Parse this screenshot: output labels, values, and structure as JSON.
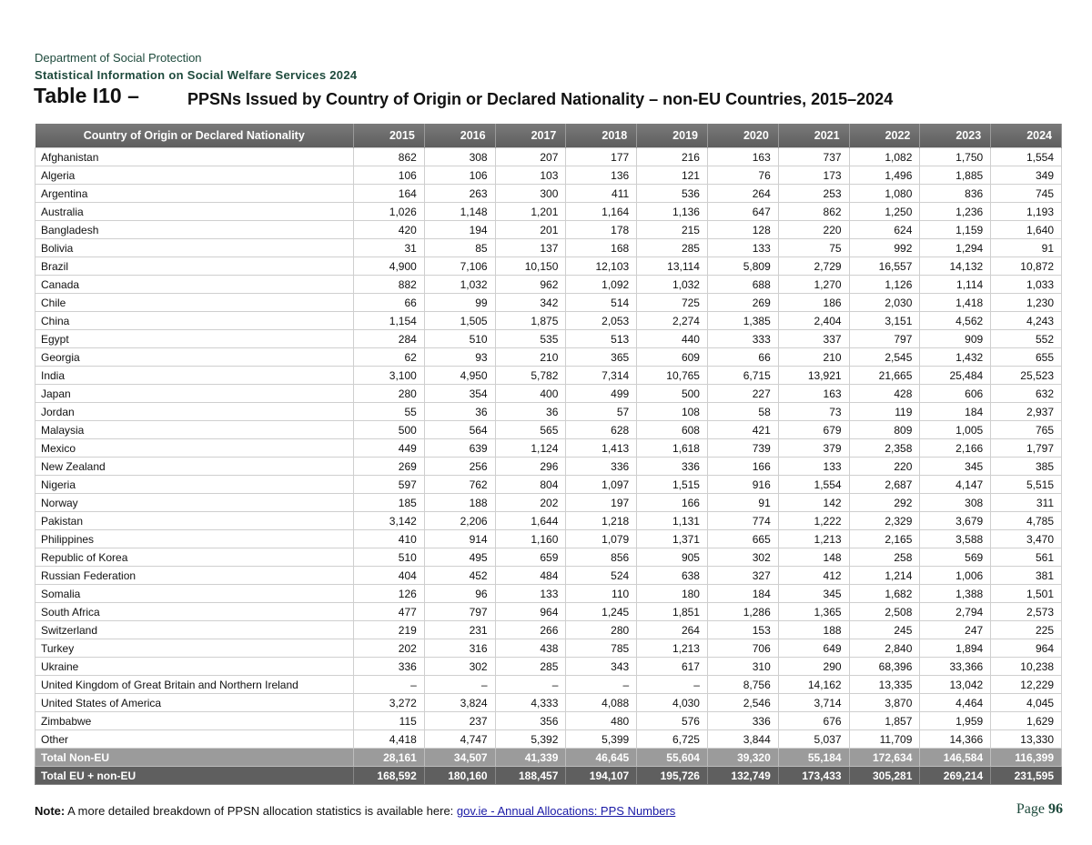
{
  "header": {
    "department": "Department of Social Protection",
    "publication": "Statistical Information on Social Welfare Services 2024",
    "table_number": "Table I10 –",
    "table_title": "PPSNs Issued by Country of Origin or Declared Nationality – non-EU Countries, 2015–2024"
  },
  "table": {
    "columns": [
      "Country of Origin or Declared Nationality",
      "2015",
      "2016",
      "2017",
      "2018",
      "2019",
      "2020",
      "2021",
      "2022",
      "2023",
      "2024"
    ],
    "rows": [
      [
        "Afghanistan",
        "862",
        "308",
        "207",
        "177",
        "216",
        "163",
        "737",
        "1,082",
        "1,750",
        "1,554"
      ],
      [
        "Algeria",
        "106",
        "106",
        "103",
        "136",
        "121",
        "76",
        "173",
        "1,496",
        "1,885",
        "349"
      ],
      [
        "Argentina",
        "164",
        "263",
        "300",
        "411",
        "536",
        "264",
        "253",
        "1,080",
        "836",
        "745"
      ],
      [
        "Australia",
        "1,026",
        "1,148",
        "1,201",
        "1,164",
        "1,136",
        "647",
        "862",
        "1,250",
        "1,236",
        "1,193"
      ],
      [
        "Bangladesh",
        "420",
        "194",
        "201",
        "178",
        "215",
        "128",
        "220",
        "624",
        "1,159",
        "1,640"
      ],
      [
        "Bolivia",
        "31",
        "85",
        "137",
        "168",
        "285",
        "133",
        "75",
        "992",
        "1,294",
        "91"
      ],
      [
        "Brazil",
        "4,900",
        "7,106",
        "10,150",
        "12,103",
        "13,114",
        "5,809",
        "2,729",
        "16,557",
        "14,132",
        "10,872"
      ],
      [
        "Canada",
        "882",
        "1,032",
        "962",
        "1,092",
        "1,032",
        "688",
        "1,270",
        "1,126",
        "1,114",
        "1,033"
      ],
      [
        "Chile",
        "66",
        "99",
        "342",
        "514",
        "725",
        "269",
        "186",
        "2,030",
        "1,418",
        "1,230"
      ],
      [
        "China",
        "1,154",
        "1,505",
        "1,875",
        "2,053",
        "2,274",
        "1,385",
        "2,404",
        "3,151",
        "4,562",
        "4,243"
      ],
      [
        "Egypt",
        "284",
        "510",
        "535",
        "513",
        "440",
        "333",
        "337",
        "797",
        "909",
        "552"
      ],
      [
        "Georgia",
        "62",
        "93",
        "210",
        "365",
        "609",
        "66",
        "210",
        "2,545",
        "1,432",
        "655"
      ],
      [
        "India",
        "3,100",
        "4,950",
        "5,782",
        "7,314",
        "10,765",
        "6,715",
        "13,921",
        "21,665",
        "25,484",
        "25,523"
      ],
      [
        "Japan",
        "280",
        "354",
        "400",
        "499",
        "500",
        "227",
        "163",
        "428",
        "606",
        "632"
      ],
      [
        "Jordan",
        "55",
        "36",
        "36",
        "57",
        "108",
        "58",
        "73",
        "119",
        "184",
        "2,937"
      ],
      [
        "Malaysia",
        "500",
        "564",
        "565",
        "628",
        "608",
        "421",
        "679",
        "809",
        "1,005",
        "765"
      ],
      [
        "Mexico",
        "449",
        "639",
        "1,124",
        "1,413",
        "1,618",
        "739",
        "379",
        "2,358",
        "2,166",
        "1,797"
      ],
      [
        "New Zealand",
        "269",
        "256",
        "296",
        "336",
        "336",
        "166",
        "133",
        "220",
        "345",
        "385"
      ],
      [
        "Nigeria",
        "597",
        "762",
        "804",
        "1,097",
        "1,515",
        "916",
        "1,554",
        "2,687",
        "4,147",
        "5,515"
      ],
      [
        "Norway",
        "185",
        "188",
        "202",
        "197",
        "166",
        "91",
        "142",
        "292",
        "308",
        "311"
      ],
      [
        "Pakistan",
        "3,142",
        "2,206",
        "1,644",
        "1,218",
        "1,131",
        "774",
        "1,222",
        "2,329",
        "3,679",
        "4,785"
      ],
      [
        "Philippines",
        "410",
        "914",
        "1,160",
        "1,079",
        "1,371",
        "665",
        "1,213",
        "2,165",
        "3,588",
        "3,470"
      ],
      [
        "Republic of Korea",
        "510",
        "495",
        "659",
        "856",
        "905",
        "302",
        "148",
        "258",
        "569",
        "561"
      ],
      [
        "Russian Federation",
        "404",
        "452",
        "484",
        "524",
        "638",
        "327",
        "412",
        "1,214",
        "1,006",
        "381"
      ],
      [
        "Somalia",
        "126",
        "96",
        "133",
        "110",
        "180",
        "184",
        "345",
        "1,682",
        "1,388",
        "1,501"
      ],
      [
        "South Africa",
        "477",
        "797",
        "964",
        "1,245",
        "1,851",
        "1,286",
        "1,365",
        "2,508",
        "2,794",
        "2,573"
      ],
      [
        "Switzerland",
        "219",
        "231",
        "266",
        "280",
        "264",
        "153",
        "188",
        "245",
        "247",
        "225"
      ],
      [
        "Turkey",
        "202",
        "316",
        "438",
        "785",
        "1,213",
        "706",
        "649",
        "2,840",
        "1,894",
        "964"
      ],
      [
        "Ukraine",
        "336",
        "302",
        "285",
        "343",
        "617",
        "310",
        "290",
        "68,396",
        "33,366",
        "10,238"
      ],
      [
        "United Kingdom of Great Britain and Northern Ireland",
        "–",
        "–",
        "–",
        "–",
        "–",
        "8,756",
        "14,162",
        "13,335",
        "13,042",
        "12,229"
      ],
      [
        "United States of America",
        "3,272",
        "3,824",
        "4,333",
        "4,088",
        "4,030",
        "2,546",
        "3,714",
        "3,870",
        "4,464",
        "4,045"
      ],
      [
        "Zimbabwe",
        "115",
        "237",
        "356",
        "480",
        "576",
        "336",
        "676",
        "1,857",
        "1,959",
        "1,629"
      ],
      [
        "Other",
        "4,418",
        "4,747",
        "5,392",
        "5,399",
        "6,725",
        "3,844",
        "5,037",
        "11,709",
        "14,366",
        "13,330"
      ]
    ],
    "total_non_eu": [
      "Total Non-EU",
      "28,161",
      "34,507",
      "41,339",
      "46,645",
      "55,604",
      "39,320",
      "55,184",
      "172,634",
      "146,584",
      "116,399"
    ],
    "total_all": [
      "Total EU + non-EU",
      "168,592",
      "180,160",
      "188,457",
      "194,107",
      "195,726",
      "132,749",
      "173,433",
      "305,281",
      "269,214",
      "231,595"
    ]
  },
  "footer": {
    "note_label": "Note:",
    "note_text": " A more detailed breakdown of PPSN allocation statistics is available here: ",
    "link_text": "gov.ie - Annual Allocations: PPS Numbers",
    "page_label": "Page ",
    "page_number": "96"
  }
}
